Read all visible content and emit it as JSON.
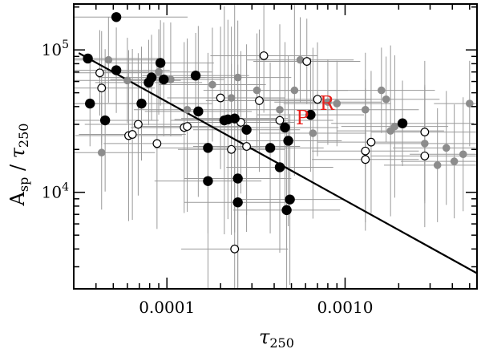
{
  "chart_data": {
    "type": "scatter",
    "title": "",
    "xlabel": {
      "symbol": "τ",
      "sub": "250"
    },
    "ylabel": {
      "main": "A",
      "main_sub": "sp",
      "sep": " / ",
      "symbol": "τ",
      "sub": "250"
    },
    "x_scale": "log",
    "y_scale": "log",
    "xlim": [
      3e-05,
      0.0055
    ],
    "ylim": [
      2100,
      210000
    ],
    "x_ticks": [
      {
        "value": 0.0001,
        "label": "0.0001"
      },
      {
        "value": 0.001,
        "label": "0.0010"
      }
    ],
    "y_ticks": [
      {
        "value": 10000,
        "base": "10",
        "exp": "4"
      },
      {
        "value": 100000,
        "base": "10",
        "exp": "5"
      }
    ],
    "grid": false,
    "colors": {
      "filled": "#000000",
      "gray": "#8c8c8c",
      "open": "#000000",
      "annotation": "#e8201c",
      "errorbar": "#9a9a9a"
    },
    "fit_line": {
      "x": [
        3.2e-05,
        0.0055
      ],
      "y": [
        95000,
        2700
      ]
    },
    "annotations": [
      {
        "text": "P",
        "x": 0.00053,
        "y": 30000
      },
      {
        "text": "R",
        "x": 0.00072,
        "y": 38000
      }
    ],
    "series": [
      {
        "style": "filled",
        "points": [
          {
            "x": 3.6e-05,
            "y": 87000,
            "xe": 0.4,
            "ye": 0
          },
          {
            "x": 3.7e-05,
            "y": 42000,
            "xe": 0.3,
            "ye": 0.3
          },
          {
            "x": 4.5e-05,
            "y": 32000,
            "xe": 0.3,
            "ye": 0.5
          },
          {
            "x": 5.2e-05,
            "y": 72000,
            "xe": 0.3,
            "ye": 0.3
          },
          {
            "x": 5.2e-05,
            "y": 170000,
            "xe": 0.4,
            "ye": 0
          },
          {
            "x": 7.2e-05,
            "y": 42000,
            "xe": 0.4,
            "ye": 0.4
          },
          {
            "x": 7.9e-05,
            "y": 59000,
            "xe": 0.3,
            "ye": 0.3
          },
          {
            "x": 8.2e-05,
            "y": 64000,
            "xe": 0.3,
            "ye": 0.3
          },
          {
            "x": 9.2e-05,
            "y": 81000,
            "xe": 0.3,
            "ye": 0.3
          },
          {
            "x": 9.6e-05,
            "y": 62000,
            "xe": 0.3,
            "ye": 0.4
          },
          {
            "x": 0.000145,
            "y": 66000,
            "xe": 0.3,
            "ye": 0.3
          },
          {
            "x": 0.00015,
            "y": 37000,
            "xe": 0.3,
            "ye": 0.6
          },
          {
            "x": 0.00017,
            "y": 12000,
            "xe": 0.3,
            "ye": 0.9
          },
          {
            "x": 0.00017,
            "y": 20500,
            "xe": 0.3,
            "ye": 0.6
          },
          {
            "x": 0.00021,
            "y": 32000,
            "xe": 0.3,
            "ye": 0.8
          },
          {
            "x": 0.00022,
            "y": 32500,
            "xe": 0.3,
            "ye": 0.7
          },
          {
            "x": 0.00024,
            "y": 33000,
            "xe": 0.3,
            "ye": 0.8
          },
          {
            "x": 0.00025,
            "y": 8500,
            "xe": 0.3,
            "ye": 0.8
          },
          {
            "x": 0.00025,
            "y": 12500,
            "xe": 0.3,
            "ye": 0.8
          },
          {
            "x": 0.00028,
            "y": 27500,
            "xe": 0.3,
            "ye": 0.6
          },
          {
            "x": 0.00038,
            "y": 20500,
            "xe": 0.3,
            "ye": 0.6
          },
          {
            "x": 0.00043,
            "y": 15000,
            "xe": 0.3,
            "ye": 0.6
          },
          {
            "x": 0.00046,
            "y": 28500,
            "xe": 0.3,
            "ye": 0.6
          },
          {
            "x": 0.00047,
            "y": 7500,
            "xe": 0.3,
            "ye": 0.6
          },
          {
            "x": 0.00048,
            "y": 23000,
            "xe": 0.3,
            "ye": 0.6
          },
          {
            "x": 0.00049,
            "y": 8900,
            "xe": 0.3,
            "ye": 0.6
          },
          {
            "x": 0.00064,
            "y": 35000,
            "xe": 0.3,
            "ye": 0.4
          },
          {
            "x": 0.0021,
            "y": 30500,
            "xe": 0.4,
            "ye": 0.3
          }
        ]
      },
      {
        "style": "gray",
        "points": [
          {
            "x": 4.3e-05,
            "y": 19000,
            "xe": 0.3,
            "ye": 0.4
          },
          {
            "x": 4.7e-05,
            "y": 85000,
            "xe": 0.3,
            "ye": 0.3
          },
          {
            "x": 6e-05,
            "y": 61000,
            "xe": 0.3,
            "ye": 0.3
          },
          {
            "x": 9e-05,
            "y": 70000,
            "xe": 0.3,
            "ye": 0.3
          },
          {
            "x": 0.000105,
            "y": 62000,
            "xe": 0.3,
            "ye": 0.4
          },
          {
            "x": 0.00013,
            "y": 38000,
            "xe": 0.3,
            "ye": 0.5
          },
          {
            "x": 0.00018,
            "y": 57000,
            "xe": 0.3,
            "ye": 0.4
          },
          {
            "x": 0.00023,
            "y": 46000,
            "xe": 0.3,
            "ye": 0.5
          },
          {
            "x": 0.00025,
            "y": 64000,
            "xe": 0.3,
            "ye": 0.4
          },
          {
            "x": 0.00032,
            "y": 52000,
            "xe": 0.3,
            "ye": 0.4
          },
          {
            "x": 0.00043,
            "y": 38000,
            "xe": 0.3,
            "ye": 0.6
          },
          {
            "x": 0.00052,
            "y": 52000,
            "xe": 0.3,
            "ye": 0.6
          },
          {
            "x": 0.00056,
            "y": 85000,
            "xe": 0.3,
            "ye": 0.3
          },
          {
            "x": 0.00066,
            "y": 26000,
            "xe": 0.3,
            "ye": 0.6
          },
          {
            "x": 0.0008,
            "y": 43000,
            "xe": 0.3,
            "ye": 0.3
          },
          {
            "x": 0.0009,
            "y": 42000,
            "xe": 0.3,
            "ye": 0.3
          },
          {
            "x": 0.0013,
            "y": 38000,
            "xe": 0.3,
            "ye": 0.4
          },
          {
            "x": 0.0016,
            "y": 52000,
            "xe": 0.3,
            "ye": 0.3
          },
          {
            "x": 0.0017,
            "y": 45000,
            "xe": 0.3,
            "ye": 0.3
          },
          {
            "x": 0.0018,
            "y": 27000,
            "xe": 0.3,
            "ye": 0.6
          },
          {
            "x": 0.0019,
            "y": 29000,
            "xe": 0.3,
            "ye": 0.5
          },
          {
            "x": 0.0028,
            "y": 22000,
            "xe": 0.3,
            "ye": 0.4
          },
          {
            "x": 0.0033,
            "y": 15500,
            "xe": 0.3,
            "ye": 0.4
          },
          {
            "x": 0.0037,
            "y": 20500,
            "xe": 0.3,
            "ye": 0.4
          },
          {
            "x": 0.0041,
            "y": 16500,
            "xe": 0.3,
            "ye": 0.4
          },
          {
            "x": 0.0046,
            "y": 18500,
            "xe": 0.3,
            "ye": 0.4
          },
          {
            "x": 0.005,
            "y": 42000,
            "xe": 0.2,
            "ye": 0.3
          }
        ]
      },
      {
        "style": "open",
        "points": [
          {
            "x": 4.2e-05,
            "y": 69000,
            "xe": 0.3,
            "ye": 0.3
          },
          {
            "x": 4.3e-05,
            "y": 54000,
            "xe": 0.3,
            "ye": 0.4
          },
          {
            "x": 6.1e-05,
            "y": 25000,
            "xe": 0.3,
            "ye": 0.6
          },
          {
            "x": 6.4e-05,
            "y": 25500,
            "xe": 0.3,
            "ye": 0.6
          },
          {
            "x": 6.9e-05,
            "y": 30000,
            "xe": 0.3,
            "ye": 0.5
          },
          {
            "x": 8.8e-05,
            "y": 22000,
            "xe": 0.3,
            "ye": 0.6
          },
          {
            "x": 0.000125,
            "y": 28500,
            "xe": 0.3,
            "ye": 0.6
          },
          {
            "x": 0.00013,
            "y": 29000,
            "xe": 0.3,
            "ye": 0.6
          },
          {
            "x": 0.0002,
            "y": 46000,
            "xe": 0.3,
            "ye": 0.5
          },
          {
            "x": 0.00023,
            "y": 20000,
            "xe": 0.3,
            "ye": 0.6
          },
          {
            "x": 0.00024,
            "y": 4000,
            "xe": 0.3,
            "ye": 0.8
          },
          {
            "x": 0.00026,
            "y": 31000,
            "xe": 0.3,
            "ye": 0.5
          },
          {
            "x": 0.00028,
            "y": 21000,
            "xe": 0.3,
            "ye": 0.6
          },
          {
            "x": 0.00033,
            "y": 44000,
            "xe": 0.3,
            "ye": 0.5
          },
          {
            "x": 0.00035,
            "y": 91000,
            "xe": 0.3,
            "ye": 0.4
          },
          {
            "x": 0.00043,
            "y": 32000,
            "xe": 0.3,
            "ye": 0.6
          },
          {
            "x": 0.00061,
            "y": 83000,
            "xe": 0.3,
            "ye": 0.3
          },
          {
            "x": 0.0007,
            "y": 45000,
            "xe": 0.3,
            "ye": 0.4
          },
          {
            "x": 0.0013,
            "y": 17000,
            "xe": 0.3,
            "ye": 0.5
          },
          {
            "x": 0.0013,
            "y": 19500,
            "xe": 0.3,
            "ye": 0.5
          },
          {
            "x": 0.0014,
            "y": 22500,
            "xe": 0.3,
            "ye": 0.5
          },
          {
            "x": 0.0028,
            "y": 18000,
            "xe": 0.3,
            "ye": 0.5
          },
          {
            "x": 0.0028,
            "y": 26500,
            "xe": 0.3,
            "ye": 0.5
          }
        ]
      }
    ]
  }
}
